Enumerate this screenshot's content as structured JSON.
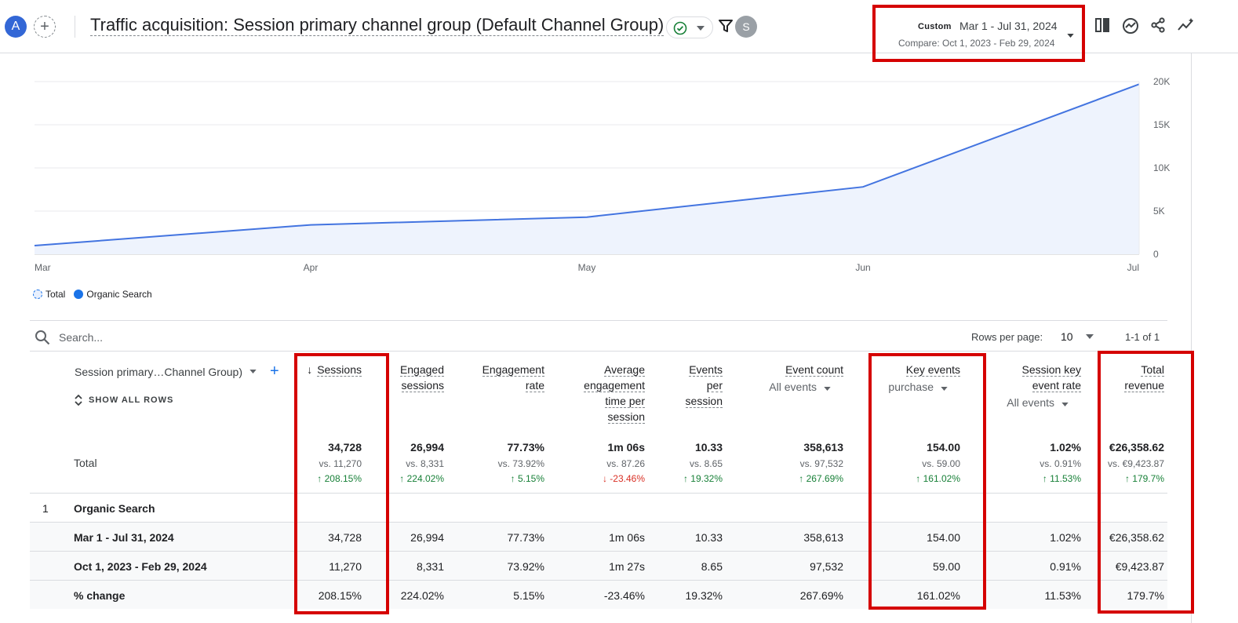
{
  "header": {
    "avatar_a": "A",
    "avatar_s": "S",
    "add_segment": "+",
    "title": "Traffic acquisition: Session primary channel group (Default Channel Group)",
    "date": {
      "badge": "Custom",
      "range": "Mar 1 - Jul 31, 2024",
      "compare": "Compare: Oct 1, 2023 - Feb 29, 2024"
    },
    "icons": [
      "compare-columns-icon",
      "insights-icon",
      "share-icon",
      "sparkline-icon"
    ]
  },
  "chart_data": {
    "type": "area",
    "x": [
      "Mar",
      "Apr",
      "May",
      "Jun",
      "Jul"
    ],
    "series": [
      {
        "name": "Organic Search",
        "values": [
          1000,
          3400,
          4300,
          7800,
          19700
        ]
      }
    ],
    "y_ticks": [
      "0",
      "5K",
      "10K",
      "15K",
      "20K"
    ],
    "ylim": [
      0,
      20000
    ],
    "grid": true,
    "legend": [
      "Total",
      "Organic Search"
    ],
    "legend_position": "bottom-left",
    "colors": {
      "line": "#4374e0",
      "fill": "#eef3fd"
    }
  },
  "table": {
    "search_placeholder": "Search...",
    "rows_per_page_label": "Rows per page:",
    "rows_per_page": "10",
    "pagination": "1-1 of 1",
    "dimension_label": "Session primary…Channel Group)",
    "show_all_rows": "SHOW ALL ROWS",
    "sort_arrow": "↓",
    "columns": [
      {
        "lines": [
          "Sessions"
        ]
      },
      {
        "lines": [
          "Engaged",
          "sessions"
        ]
      },
      {
        "lines": [
          "Engagement",
          "rate"
        ]
      },
      {
        "lines": [
          "Average",
          "engagement",
          "time per",
          "session"
        ]
      },
      {
        "lines": [
          "Events",
          "per",
          "session"
        ]
      },
      {
        "lines": [
          "Event count"
        ],
        "sub": "All events"
      },
      {
        "lines": [
          "Key events"
        ],
        "sub": "purchase"
      },
      {
        "lines": [
          "Session key",
          "event rate"
        ],
        "sub": "All events"
      },
      {
        "lines": [
          "Total",
          "revenue"
        ]
      }
    ],
    "total_label": "Total",
    "totals": [
      {
        "main": "34,728",
        "vs": "vs. 11,270",
        "pct": "↑ 208.15%",
        "dir": "up"
      },
      {
        "main": "26,994",
        "vs": "vs. 8,331",
        "pct": "↑ 224.02%",
        "dir": "up"
      },
      {
        "main": "77.73%",
        "vs": "vs. 73.92%",
        "pct": "↑ 5.15%",
        "dir": "up"
      },
      {
        "main": "1m 06s",
        "vs": "vs. 87.26",
        "pct": "↓ -23.46%",
        "dir": "dn"
      },
      {
        "main": "10.33",
        "vs": "vs. 8.65",
        "pct": "↑ 19.32%",
        "dir": "up"
      },
      {
        "main": "358,613",
        "vs": "vs. 97,532",
        "pct": "↑ 267.69%",
        "dir": "up"
      },
      {
        "main": "154.00",
        "vs": "vs. 59.00",
        "pct": "↑ 161.02%",
        "dir": "up"
      },
      {
        "main": "1.02%",
        "vs": "vs. 0.91%",
        "pct": "↑ 11.53%",
        "dir": "up"
      },
      {
        "main": "€26,358.62",
        "vs": "vs. €9,423.87",
        "pct": "↑ 179.7%",
        "dir": "up"
      }
    ],
    "group": {
      "index": "1",
      "name": "Organic Search"
    },
    "rows": [
      {
        "label": "Mar 1 - Jul 31, 2024",
        "cells": [
          "34,728",
          "26,994",
          "77.73%",
          "1m 06s",
          "10.33",
          "358,613",
          "154.00",
          "1.02%",
          "€26,358.62"
        ]
      },
      {
        "label": "Oct 1, 2023 - Feb 29, 2024",
        "cells": [
          "11,270",
          "8,331",
          "73.92%",
          "1m 27s",
          "8.65",
          "97,532",
          "59.00",
          "0.91%",
          "€9,423.87"
        ]
      },
      {
        "label": "% change",
        "cells": [
          "208.15%",
          "224.02%",
          "5.15%",
          "-23.46%",
          "19.32%",
          "267.69%",
          "161.02%",
          "11.53%",
          "179.7%"
        ]
      }
    ]
  }
}
